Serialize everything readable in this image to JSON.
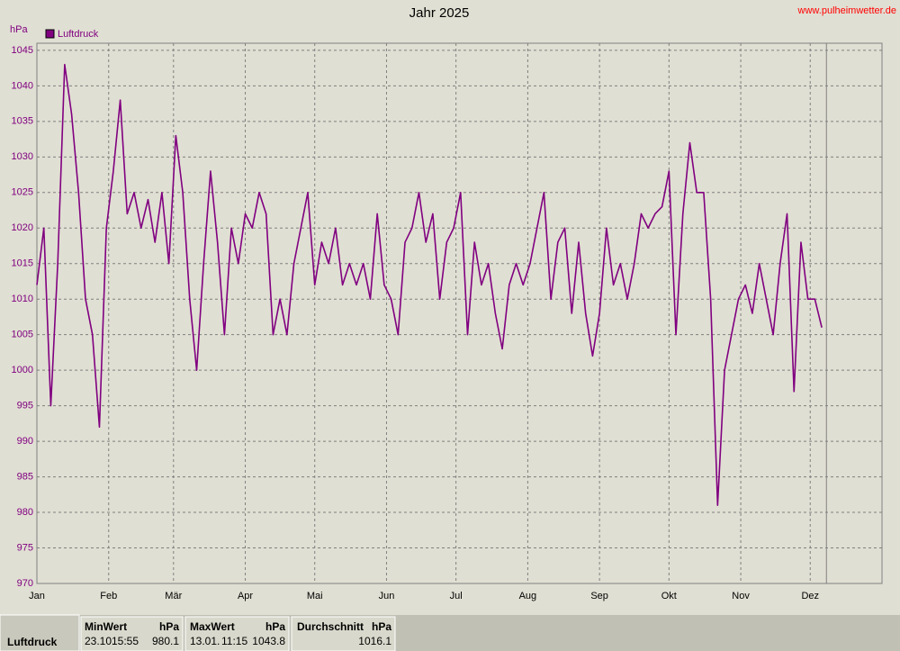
{
  "chart_data": {
    "type": "line",
    "title": "Jahr 2025",
    "site": "www.pulheimwetter.de",
    "y_unit": "hPa",
    "x": [
      0,
      3,
      6,
      9,
      12,
      15,
      18,
      21,
      24,
      27,
      30,
      33,
      36,
      39,
      42,
      45,
      48,
      51,
      54,
      57,
      60,
      63,
      66,
      69,
      72,
      75,
      78,
      81,
      84,
      87,
      90,
      93,
      96,
      99,
      102,
      105,
      108,
      111,
      114,
      117,
      120,
      123,
      126,
      129,
      132,
      135,
      138,
      141,
      144,
      147,
      150,
      153,
      156,
      159,
      162,
      165,
      168,
      171,
      174,
      177,
      180,
      183,
      186,
      189,
      192,
      195,
      198,
      201,
      204,
      207,
      210,
      213,
      216,
      219,
      222,
      225,
      228,
      231,
      234,
      237,
      240,
      243,
      246,
      249,
      252,
      255,
      258,
      261,
      264,
      267,
      270,
      273,
      276,
      279,
      282,
      285,
      288,
      291,
      294,
      297,
      300,
      303,
      306,
      309,
      312,
      315,
      318,
      321,
      324,
      327,
      330,
      333,
      336,
      339
    ],
    "series": [
      {
        "name": "Luftdruck",
        "color": "#800080",
        "values": [
          1012,
          1020,
          995,
          1015,
          1043,
          1036,
          1025,
          1010,
          1005,
          992,
          1020,
          1028,
          1038,
          1022,
          1025,
          1020,
          1024,
          1018,
          1025,
          1015,
          1033,
          1025,
          1010,
          1000,
          1015,
          1028,
          1018,
          1005,
          1020,
          1015,
          1022,
          1020,
          1025,
          1022,
          1005,
          1010,
          1005,
          1015,
          1020,
          1025,
          1012,
          1018,
          1015,
          1020,
          1012,
          1015,
          1012,
          1015,
          1010,
          1022,
          1012,
          1010,
          1005,
          1018,
          1020,
          1025,
          1018,
          1022,
          1010,
          1018,
          1020,
          1025,
          1005,
          1018,
          1012,
          1015,
          1008,
          1003,
          1012,
          1015,
          1012,
          1015,
          1020,
          1025,
          1010,
          1018,
          1020,
          1008,
          1018,
          1008,
          1002,
          1008,
          1020,
          1012,
          1015,
          1010,
          1015,
          1022,
          1020,
          1022,
          1023,
          1028,
          1005,
          1022,
          1032,
          1025,
          1025,
          1010,
          981,
          1000,
          1005,
          1010,
          1012,
          1008,
          1015,
          1010,
          1005,
          1015,
          1022,
          997,
          1018,
          1010,
          1010,
          1006
        ]
      }
    ],
    "xlim": [
      0,
      365
    ],
    "xticks": [
      {
        "value": 0,
        "label": "Jan"
      },
      {
        "value": 31,
        "label": "Feb"
      },
      {
        "value": 59,
        "label": "Mär"
      },
      {
        "value": 90,
        "label": "Apr"
      },
      {
        "value": 120,
        "label": "Mai"
      },
      {
        "value": 151,
        "label": "Jun"
      },
      {
        "value": 181,
        "label": "Jul"
      },
      {
        "value": 212,
        "label": "Aug"
      },
      {
        "value": 243,
        "label": "Sep"
      },
      {
        "value": 273,
        "label": "Okt"
      },
      {
        "value": 304,
        "label": "Nov"
      },
      {
        "value": 334,
        "label": "Dez"
      }
    ],
    "ylim": [
      970,
      1046
    ],
    "yticks": [
      970,
      975,
      980,
      985,
      990,
      995,
      1000,
      1005,
      1010,
      1015,
      1020,
      1025,
      1030,
      1035,
      1040,
      1045
    ],
    "grid": true,
    "marker_x": 341
  },
  "stats": {
    "label": "Luftdruck",
    "min": {
      "header": "MinWert",
      "unit": "hPa",
      "date": "23.10.",
      "time": "15:55",
      "value": "980.1"
    },
    "max": {
      "header": "MaxWert",
      "unit": "hPa",
      "date": "13.01.",
      "time": "11:15",
      "value": "1043.8"
    },
    "avg": {
      "header": "Durchschnitt",
      "unit": "hPa",
      "value": "1016.1"
    }
  }
}
